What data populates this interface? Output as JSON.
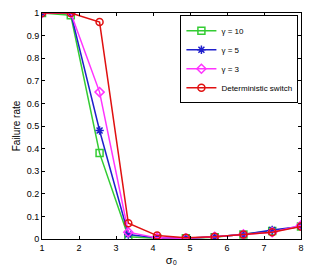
{
  "chart_data": {
    "type": "line",
    "x_label": "σ₀",
    "y_label": "Failure rate",
    "x": [
      1,
      1.778,
      2.556,
      3.333,
      4.111,
      4.889,
      5.667,
      6.444,
      7.222,
      8
    ],
    "series": [
      {
        "name": "γ = 10",
        "color": "#33cc33",
        "marker": "square",
        "line_style": "solid",
        "values": [
          1,
          0.99,
          0.38,
          0.01,
          0.003,
          0.003,
          0.008,
          0.02,
          0.035,
          0.055
        ]
      },
      {
        "name": "γ = 5",
        "color": "#1f1fcc",
        "marker": "asterisk",
        "line_style": "solid",
        "values": [
          1,
          1,
          0.48,
          0.02,
          0.005,
          0.003,
          0.01,
          0.02,
          0.04,
          0.055
        ]
      },
      {
        "name": "γ = 3",
        "color": "#ff33ff",
        "marker": "diamond",
        "line_style": "solid",
        "values": [
          1,
          1,
          0.65,
          0.03,
          0.005,
          0.003,
          0.01,
          0.02,
          0.03,
          0.06
        ]
      },
      {
        "name": "Deterministic switch",
        "color": "#e01010",
        "marker": "circle",
        "line_style": "solid",
        "values": [
          1,
          1,
          0.96,
          0.07,
          0.015,
          0.005,
          0.01,
          0.02,
          0.03,
          0.055
        ]
      }
    ],
    "xlim": [
      1,
      8
    ],
    "xticks": [
      1,
      2,
      3,
      4,
      5,
      6,
      7,
      8
    ],
    "ylim": [
      0,
      1
    ],
    "yticks": [
      0,
      0.1,
      0.2,
      0.3,
      0.4,
      0.5,
      0.6,
      0.7,
      0.8,
      0.9,
      1
    ],
    "grid": false,
    "legend": "upper right"
  }
}
